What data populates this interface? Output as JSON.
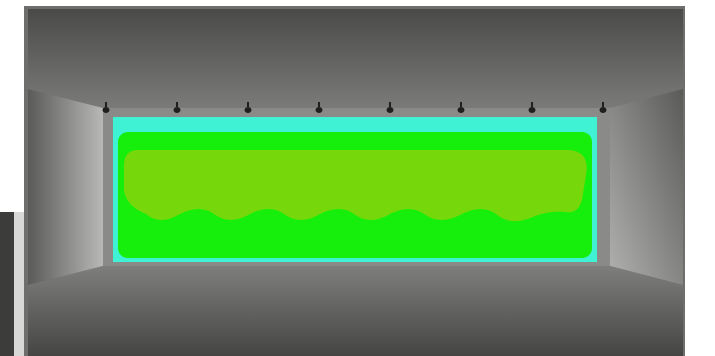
{
  "scene": {
    "colors": {
      "background": "#ffffff",
      "frame": "#6e6f6c",
      "left_panel": "#3c3d3b",
      "ceiling_top": "#4a4b48",
      "ceiling_bottom": "#7a7b78",
      "back_wall": "#8a8b88",
      "left_wall": "#b8b9b6",
      "right_wall": "#b1b2af",
      "floor_top": "#7e7f7c",
      "floor_bottom": "#454644",
      "false_color_cyan": "#3ff2d4",
      "false_color_green": "#16ef0c",
      "false_color_lime": "#76d80a",
      "fixture": "#1f201e"
    },
    "fixture_count": 8,
    "icons": {
      "fixture": "spotlight-icon"
    }
  }
}
